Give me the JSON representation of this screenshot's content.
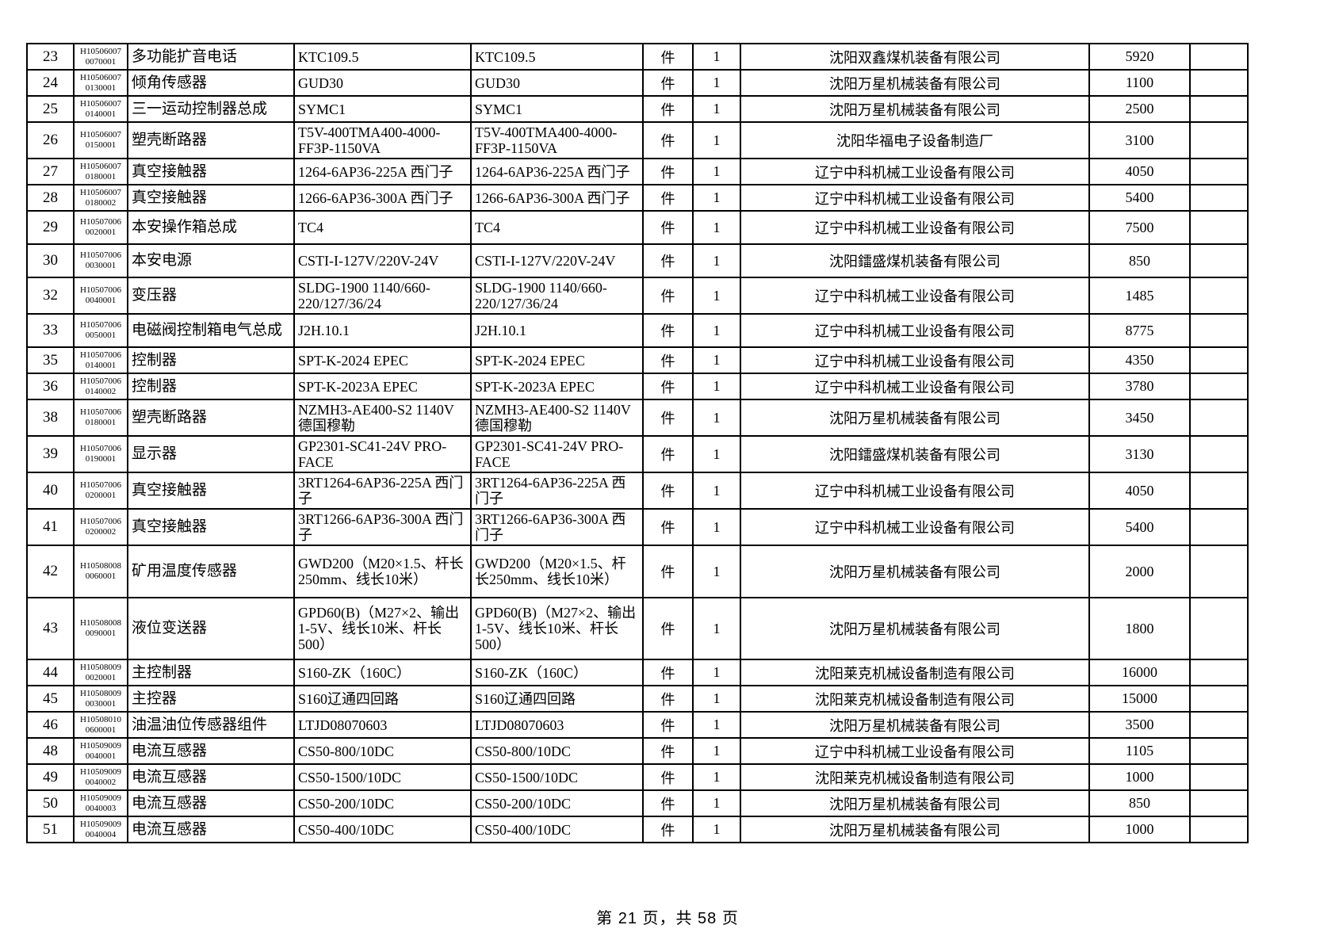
{
  "colors": {
    "background": "#ffffff",
    "border": "#000000",
    "text": "#000000"
  },
  "footer": {
    "text": "第 21 页，共 58 页",
    "page_number": "21",
    "total_pages": "58"
  },
  "table": {
    "rows": [
      {
        "no": "23",
        "code": [
          "H10506007",
          "0070001"
        ],
        "name": "多功能扩音电话",
        "spec": "KTC109.5",
        "spec2": "KTC109.5",
        "unit": "件",
        "qty": "1",
        "manufacturer": "沈阳双鑫煤机装备有限公司",
        "price": "5920"
      },
      {
        "no": "24",
        "code": [
          "H10506007",
          "0130001"
        ],
        "name": "倾角传感器",
        "spec": "GUD30",
        "spec2": "GUD30",
        "unit": "件",
        "qty": "1",
        "manufacturer": "沈阳万星机械装备有限公司",
        "price": "1100"
      },
      {
        "no": "25",
        "code": [
          "H10506007",
          "0140001"
        ],
        "name": "三一运动控制器总成",
        "spec": "SYMC1",
        "spec2": "SYMC1",
        "unit": "件",
        "qty": "1",
        "manufacturer": "沈阳万星机械装备有限公司",
        "price": "2500"
      },
      {
        "no": "26",
        "code": [
          "H10506007",
          "0150001"
        ],
        "name": "塑壳断路器",
        "spec": "T5V-400TMA400-4000-FF3P-1150VA",
        "spec2": "T5V-400TMA400-4000-FF3P-1150VA",
        "unit": "件",
        "qty": "1",
        "manufacturer": "沈阳华福电子设备制造厂",
        "price": "3100"
      },
      {
        "no": "27",
        "code": [
          "H10506007",
          "0180001"
        ],
        "name": "真空接触器",
        "spec": "1264-6AP36-225A 西门子",
        "spec2": "1264-6AP36-225A 西门子",
        "unit": "件",
        "qty": "1",
        "manufacturer": "辽宁中科机械工业设备有限公司",
        "price": "4050"
      },
      {
        "no": "28",
        "code": [
          "H10506007",
          "0180002"
        ],
        "name": "真空接触器",
        "spec": "1266-6AP36-300A 西门子",
        "spec2": "1266-6AP36-300A 西门子",
        "unit": "件",
        "qty": "1",
        "manufacturer": "辽宁中科机械工业设备有限公司",
        "price": "5400"
      },
      {
        "no": "29",
        "code": [
          "H10507006",
          "0020001"
        ],
        "name": "本安操作箱总成",
        "spec": "TC4",
        "spec2": "TC4",
        "unit": "件",
        "qty": "1",
        "manufacturer": "辽宁中科机械工业设备有限公司",
        "price": "7500"
      },
      {
        "no": "30",
        "code": [
          "H10507006",
          "0030001"
        ],
        "name": "本安电源",
        "spec": "CSTI-I-127V/220V-24V",
        "spec2": "CSTI-I-127V/220V-24V",
        "unit": "件",
        "qty": "1",
        "manufacturer": "沈阳鐳盛煤机装备有限公司",
        "price": "850"
      },
      {
        "no": "32",
        "code": [
          "H10507006",
          "0040001"
        ],
        "name": "变压器",
        "spec": "SLDG-1900 1140/660-220/127/36/24",
        "spec2": "SLDG-1900 1140/660-220/127/36/24",
        "unit": "件",
        "qty": "1",
        "manufacturer": "辽宁中科机械工业设备有限公司",
        "price": "1485"
      },
      {
        "no": "33",
        "code": [
          "H10507006",
          "0050001"
        ],
        "name": "电磁阀控制箱电气总成",
        "spec": "J2H.10.1",
        "spec2": "J2H.10.1",
        "unit": "件",
        "qty": "1",
        "manufacturer": "辽宁中科机械工业设备有限公司",
        "price": "8775"
      },
      {
        "no": "35",
        "code": [
          "H10507006",
          "0140001"
        ],
        "name": "控制器",
        "spec": "SPT-K-2024 EPEC",
        "spec2": "SPT-K-2024 EPEC",
        "unit": "件",
        "qty": "1",
        "manufacturer": "辽宁中科机械工业设备有限公司",
        "price": "4350"
      },
      {
        "no": "36",
        "code": [
          "H10507006",
          "0140002"
        ],
        "name": "控制器",
        "spec": "SPT-K-2023A EPEC",
        "spec2": "SPT-K-2023A EPEC",
        "unit": "件",
        "qty": "1",
        "manufacturer": "辽宁中科机械工业设备有限公司",
        "price": "3780"
      },
      {
        "no": "38",
        "code": [
          "H10507006",
          "0180001"
        ],
        "name": "塑壳断路器",
        "spec": "NZMH3-AE400-S2 1140V 德国穆勒",
        "spec2": "NZMH3-AE400-S2 1140V 德国穆勒",
        "unit": "件",
        "qty": "1",
        "manufacturer": "沈阳万星机械装备有限公司",
        "price": "3450"
      },
      {
        "no": "39",
        "code": [
          "H10507006",
          "0190001"
        ],
        "name": "显示器",
        "spec": "GP2301-SC41-24V PRO-FACE",
        "spec2": "GP2301-SC41-24V PRO-FACE",
        "unit": "件",
        "qty": "1",
        "manufacturer": "沈阳鐳盛煤机装备有限公司",
        "price": "3130"
      },
      {
        "no": "40",
        "code": [
          "H10507006",
          "0200001"
        ],
        "name": "真空接触器",
        "spec": "3RT1264-6AP36-225A 西门子",
        "spec2": "3RT1264-6AP36-225A 西门子",
        "unit": "件",
        "qty": "1",
        "manufacturer": "辽宁中科机械工业设备有限公司",
        "price": "4050"
      },
      {
        "no": "41",
        "code": [
          "H10507006",
          "0200002"
        ],
        "name": "真空接触器",
        "spec": "3RT1266-6AP36-300A 西门子",
        "spec2": "3RT1266-6AP36-300A 西门子",
        "unit": "件",
        "qty": "1",
        "manufacturer": "辽宁中科机械工业设备有限公司",
        "price": "5400"
      },
      {
        "no": "42",
        "code": [
          "H10508008",
          "0060001"
        ],
        "name": "矿用温度传感器",
        "spec": "GWD200（M20×1.5、杆长250mm、线长10米）",
        "spec2": "GWD200（M20×1.5、杆长250mm、线长10米）",
        "unit": "件",
        "qty": "1",
        "manufacturer": "沈阳万星机械装备有限公司",
        "price": "2000"
      },
      {
        "no": "43",
        "code": [
          "H10508008",
          "0090001"
        ],
        "name": "液位变送器",
        "spec": "GPD60(B)（M27×2、输出1-5V、线长10米、杆长500）",
        "spec2": "GPD60(B)（M27×2、输出1-5V、线长10米、杆长500）",
        "unit": "件",
        "qty": "1",
        "manufacturer": "沈阳万星机械装备有限公司",
        "price": "1800"
      },
      {
        "no": "44",
        "code": [
          "H10508009",
          "0020001"
        ],
        "name": "主控制器",
        "spec": "S160-ZK（160C）",
        "spec2": "S160-ZK（160C）",
        "unit": "件",
        "qty": "1",
        "manufacturer": "沈阳莱克机械设备制造有限公司",
        "price": "16000"
      },
      {
        "no": "45",
        "code": [
          "H10508009",
          "0030001"
        ],
        "name": "主控器",
        "spec": "S160辽通四回路",
        "spec2": "S160辽通四回路",
        "unit": "件",
        "qty": "1",
        "manufacturer": "沈阳莱克机械设备制造有限公司",
        "price": "15000"
      },
      {
        "no": "46",
        "code": [
          "H10508010",
          "0600001"
        ],
        "name": "油温油位传感器组件",
        "spec": "LTJD08070603",
        "spec2": "LTJD08070603",
        "unit": "件",
        "qty": "1",
        "manufacturer": "沈阳万星机械装备有限公司",
        "price": "3500"
      },
      {
        "no": "48",
        "code": [
          "H10509009",
          "0040001"
        ],
        "name": "电流互感器",
        "spec": "CS50-800/10DC",
        "spec2": "CS50-800/10DC",
        "unit": "件",
        "qty": "1",
        "manufacturer": "辽宁中科机械工业设备有限公司",
        "price": "1105"
      },
      {
        "no": "49",
        "code": [
          "H10509009",
          "0040002"
        ],
        "name": "电流互感器",
        "spec": "CS50-1500/10DC",
        "spec2": "CS50-1500/10DC",
        "unit": "件",
        "qty": "1",
        "manufacturer": "沈阳莱克机械设备制造有限公司",
        "price": "1000"
      },
      {
        "no": "50",
        "code": [
          "H10509009",
          "0040003"
        ],
        "name": "电流互感器",
        "spec": "CS50-200/10DC",
        "spec2": "CS50-200/10DC",
        "unit": "件",
        "qty": "1",
        "manufacturer": "沈阳万星机械装备有限公司",
        "price": "850"
      },
      {
        "no": "51",
        "code": [
          "H10509009",
          "0040004"
        ],
        "name": "电流互感器",
        "spec": "CS50-400/10DC",
        "spec2": "CS50-400/10DC",
        "unit": "件",
        "qty": "1",
        "manufacturer": "沈阳万星机械装备有限公司",
        "price": "1000"
      }
    ]
  }
}
